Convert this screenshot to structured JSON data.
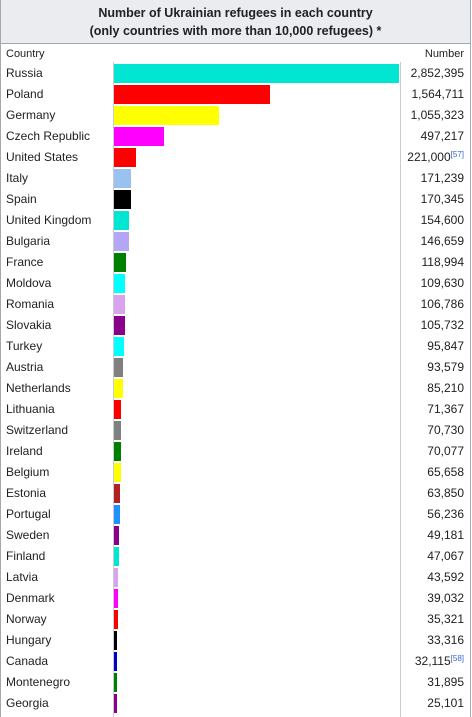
{
  "chart_data": {
    "type": "bar",
    "orientation": "horizontal",
    "title": "Number of Ukrainian refugees in each country",
    "subtitle": "(only countries with more than 10,000 refugees) *",
    "column_headers": [
      "Country",
      "Number"
    ],
    "max_value": 2852395,
    "rows": [
      {
        "country": "Russia",
        "value": 2852395,
        "display": "2,852,395",
        "note": "",
        "color": "#00e6d2"
      },
      {
        "country": "Poland",
        "value": 1564711,
        "display": "1,564,711",
        "note": "",
        "color": "#ff0000"
      },
      {
        "country": "Germany",
        "value": 1055323,
        "display": "1,055,323",
        "note": "",
        "color": "#ffff00"
      },
      {
        "country": "Czech Republic",
        "value": 497217,
        "display": "497,217",
        "note": "",
        "color": "#ff00ff"
      },
      {
        "country": "United States",
        "value": 221000,
        "display": "221,000",
        "note": "[57]",
        "color": "#ff0000"
      },
      {
        "country": "Italy",
        "value": 171239,
        "display": "171,239",
        "note": "",
        "color": "#99c2f0"
      },
      {
        "country": "Spain",
        "value": 170345,
        "display": "170,345",
        "note": "",
        "color": "#000000"
      },
      {
        "country": "United Kingdom",
        "value": 154600,
        "display": "154,600",
        "note": "",
        "color": "#00e6d2"
      },
      {
        "country": "Bulgaria",
        "value": 146659,
        "display": "146,659",
        "note": "",
        "color": "#b3a6f5"
      },
      {
        "country": "France",
        "value": 118994,
        "display": "118,994",
        "note": "",
        "color": "#008000"
      },
      {
        "country": "Moldova",
        "value": 109630,
        "display": "109,630",
        "note": "",
        "color": "#00ffff"
      },
      {
        "country": "Romania",
        "value": 106786,
        "display": "106,786",
        "note": "",
        "color": "#d9a3ef"
      },
      {
        "country": "Slovakia",
        "value": 105732,
        "display": "105,732",
        "note": "",
        "color": "#8b008b"
      },
      {
        "country": "Turkey",
        "value": 95847,
        "display": "95,847",
        "note": "",
        "color": "#00ffff"
      },
      {
        "country": "Austria",
        "value": 93579,
        "display": "93,579",
        "note": "",
        "color": "#808080"
      },
      {
        "country": "Netherlands",
        "value": 85210,
        "display": "85,210",
        "note": "",
        "color": "#ffff00"
      },
      {
        "country": "Lithuania",
        "value": 71367,
        "display": "71,367",
        "note": "",
        "color": "#ff0000"
      },
      {
        "country": "Switzerland",
        "value": 70730,
        "display": "70,730",
        "note": "",
        "color": "#808080"
      },
      {
        "country": "Ireland",
        "value": 70077,
        "display": "70,077",
        "note": "",
        "color": "#008000"
      },
      {
        "country": "Belgium",
        "value": 65658,
        "display": "65,658",
        "note": "",
        "color": "#ffff00"
      },
      {
        "country": "Estonia",
        "value": 63850,
        "display": "63,850",
        "note": "",
        "color": "#b22222"
      },
      {
        "country": "Portugal",
        "value": 56236,
        "display": "56,236",
        "note": "",
        "color": "#1e90ff"
      },
      {
        "country": "Sweden",
        "value": 49181,
        "display": "49,181",
        "note": "",
        "color": "#8b008b"
      },
      {
        "country": "Finland",
        "value": 47067,
        "display": "47,067",
        "note": "",
        "color": "#00e6d2"
      },
      {
        "country": "Latvia",
        "value": 43592,
        "display": "43,592",
        "note": "",
        "color": "#d9a3ef"
      },
      {
        "country": "Denmark",
        "value": 39032,
        "display": "39,032",
        "note": "",
        "color": "#ff00ff"
      },
      {
        "country": "Norway",
        "value": 35321,
        "display": "35,321",
        "note": "",
        "color": "#ff0000"
      },
      {
        "country": "Hungary",
        "value": 33316,
        "display": "33,316",
        "note": "",
        "color": "#000000"
      },
      {
        "country": "Canada",
        "value": 32115,
        "display": "32,115",
        "note": "[58]",
        "color": "#0000cd"
      },
      {
        "country": "Montenegro",
        "value": 31895,
        "display": "31,895",
        "note": "",
        "color": "#008000"
      },
      {
        "country": "Georgia",
        "value": 25101,
        "display": "25,101",
        "note": "",
        "color": "#8b008b"
      }
    ]
  }
}
